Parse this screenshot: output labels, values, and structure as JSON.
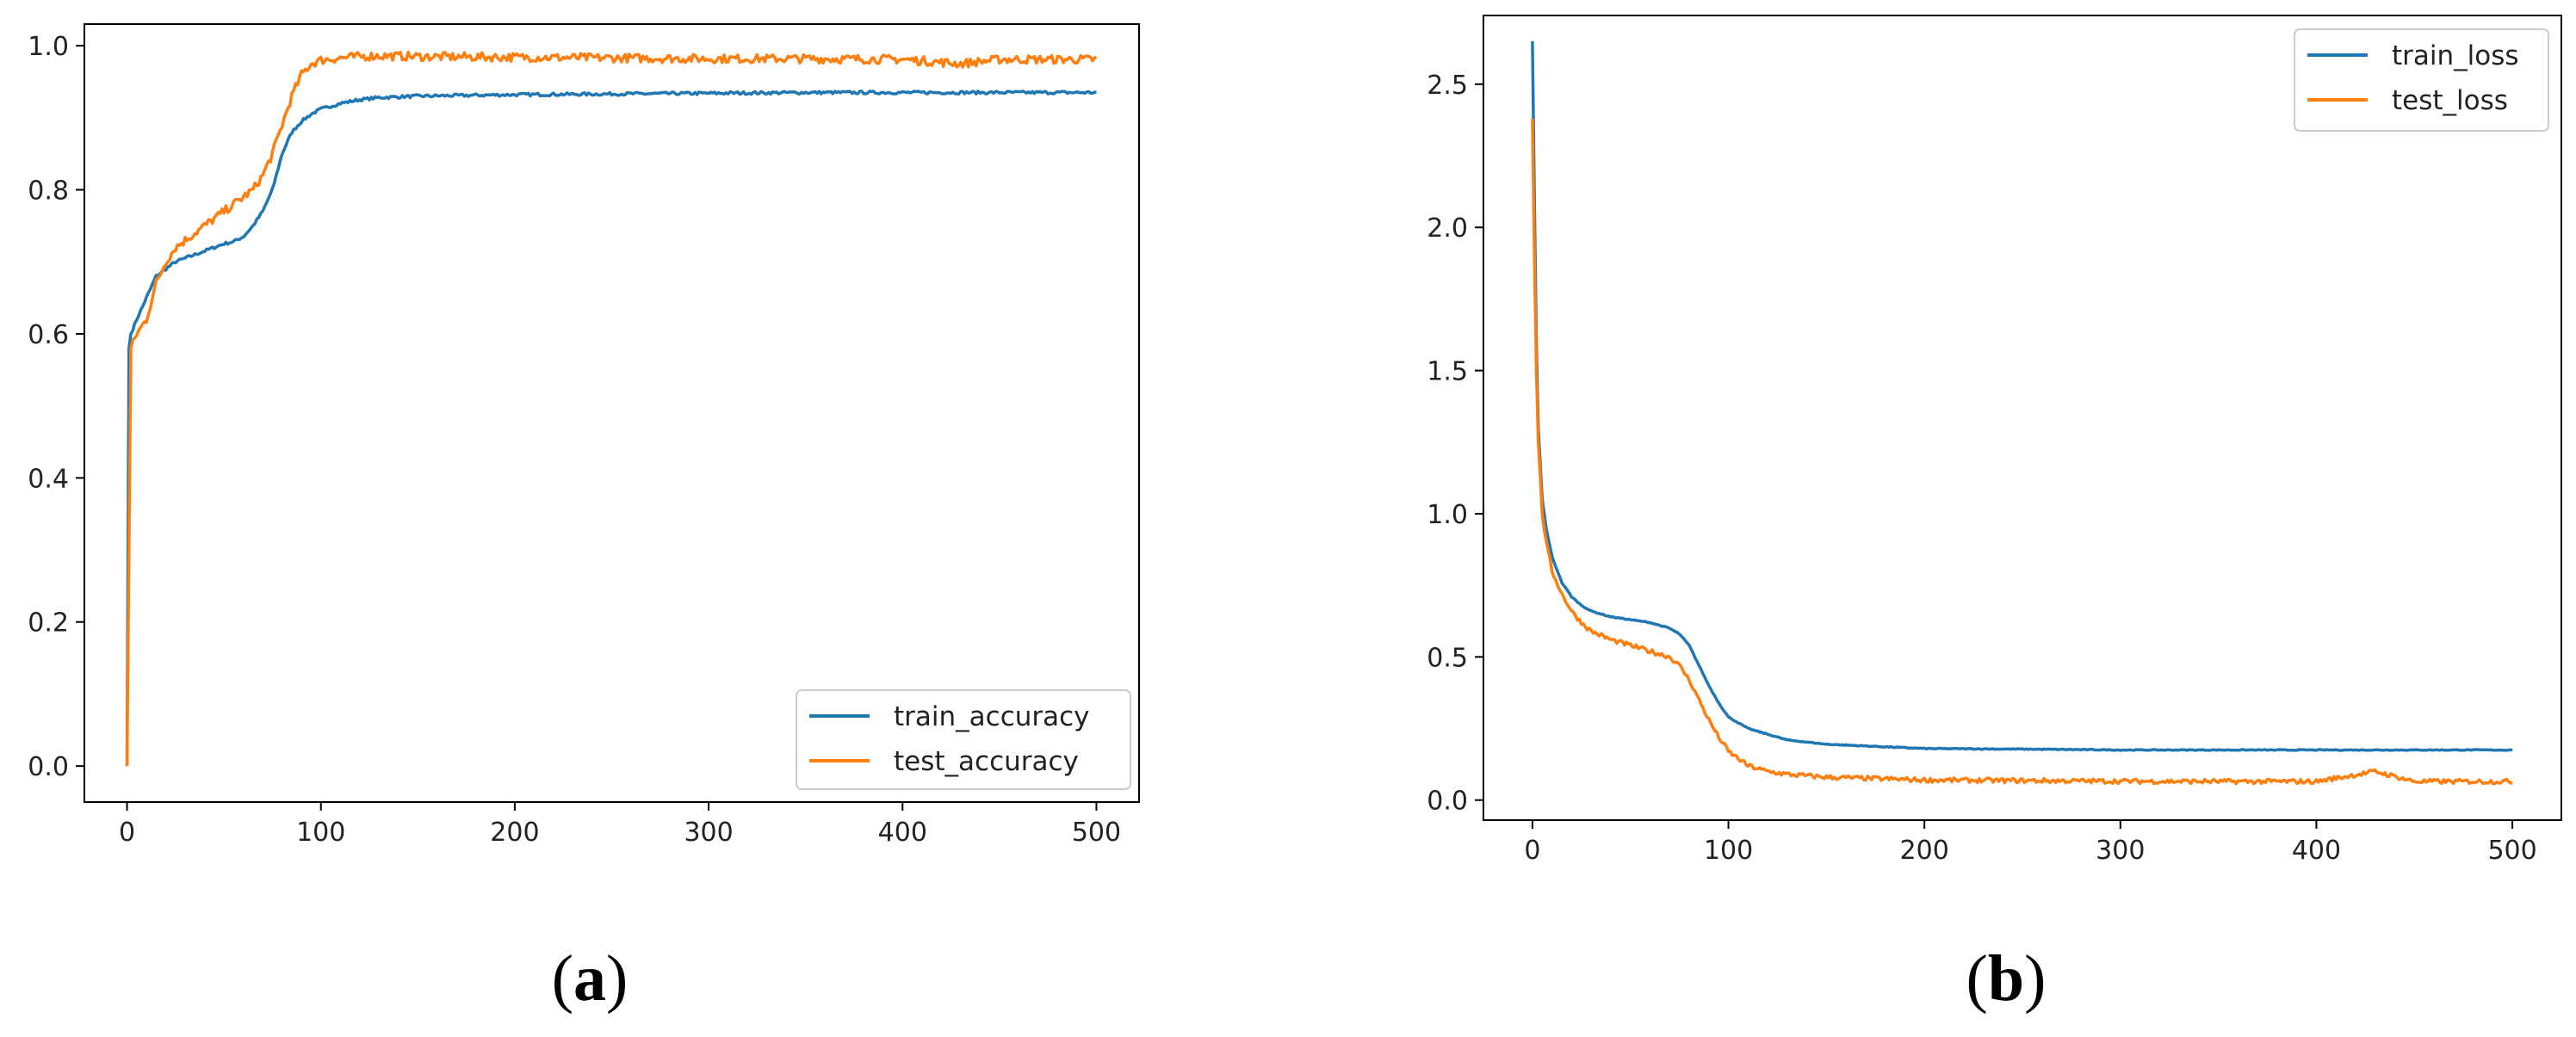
{
  "colors": {
    "train": "#1f77b4",
    "test": "#ff7f0e"
  },
  "chart_data": [
    {
      "type": "line",
      "panel_label": "a",
      "xlim": [
        -22,
        522
      ],
      "ylim": [
        -0.05,
        1.03
      ],
      "xticks": [
        0,
        100,
        200,
        300,
        400,
        500
      ],
      "yticks": [
        0.0,
        0.2,
        0.4,
        0.6,
        0.8,
        1.0
      ],
      "ytick_labels": [
        "0.0",
        "0.2",
        "0.4",
        "0.6",
        "0.8",
        "1.0"
      ],
      "grid": false,
      "legend_position": "lower-right",
      "series": [
        {
          "name": "train_accuracy",
          "color_key": "train",
          "noise": 0.002,
          "x": [
            0,
            1,
            2,
            5,
            10,
            15,
            20,
            25,
            30,
            35,
            40,
            45,
            50,
            55,
            60,
            65,
            70,
            75,
            80,
            85,
            90,
            95,
            100,
            110,
            120,
            130,
            150,
            200,
            250,
            300,
            350,
            400,
            450,
            500
          ],
          "y": [
            0.0,
            0.58,
            0.6,
            0.62,
            0.65,
            0.68,
            0.69,
            0.7,
            0.705,
            0.71,
            0.715,
            0.72,
            0.725,
            0.728,
            0.735,
            0.75,
            0.77,
            0.8,
            0.85,
            0.88,
            0.895,
            0.905,
            0.912,
            0.92,
            0.925,
            0.928,
            0.93,
            0.932,
            0.933,
            0.934,
            0.935,
            0.935,
            0.935,
            0.935
          ]
        },
        {
          "name": "test_accuracy",
          "color_key": "test",
          "noise": 0.006,
          "x": [
            0,
            1,
            2,
            5,
            10,
            15,
            20,
            25,
            30,
            35,
            40,
            45,
            50,
            55,
            60,
            65,
            70,
            75,
            80,
            85,
            90,
            95,
            100,
            110,
            120,
            130,
            150,
            200,
            250,
            300,
            350,
            400,
            430,
            450,
            500
          ],
          "y": [
            0.0,
            0.3,
            0.58,
            0.6,
            0.62,
            0.67,
            0.7,
            0.72,
            0.73,
            0.74,
            0.75,
            0.76,
            0.77,
            0.78,
            0.79,
            0.8,
            0.82,
            0.85,
            0.89,
            0.93,
            0.96,
            0.975,
            0.98,
            0.983,
            0.985,
            0.986,
            0.985,
            0.984,
            0.983,
            0.982,
            0.982,
            0.981,
            0.975,
            0.981,
            0.981
          ]
        }
      ]
    },
    {
      "type": "line",
      "panel_label": "b",
      "xlim": [
        -25,
        525
      ],
      "ylim": [
        -0.07,
        2.74
      ],
      "xticks": [
        0,
        100,
        200,
        300,
        400,
        500
      ],
      "yticks": [
        0.0,
        0.5,
        1.0,
        1.5,
        2.0,
        2.5
      ],
      "ytick_labels": [
        "0.0",
        "0.5",
        "1.0",
        "1.5",
        "2.0",
        "2.5"
      ],
      "grid": false,
      "legend_position": "upper-right",
      "series": [
        {
          "name": "train_loss",
          "color_key": "train",
          "noise": 0.0015,
          "x": [
            0,
            1,
            2,
            3,
            5,
            7,
            10,
            15,
            20,
            25,
            30,
            40,
            50,
            60,
            65,
            70,
            75,
            80,
            85,
            90,
            95,
            100,
            110,
            120,
            130,
            150,
            200,
            250,
            300,
            350,
            400,
            450,
            500
          ],
          "y": [
            2.65,
            2.1,
            1.6,
            1.3,
            1.05,
            0.95,
            0.85,
            0.76,
            0.71,
            0.68,
            0.66,
            0.64,
            0.63,
            0.62,
            0.61,
            0.6,
            0.58,
            0.54,
            0.47,
            0.4,
            0.34,
            0.29,
            0.25,
            0.23,
            0.21,
            0.195,
            0.18,
            0.178,
            0.175,
            0.175,
            0.175,
            0.175,
            0.175
          ]
        },
        {
          "name": "test_loss",
          "color_key": "test",
          "noise": 0.008,
          "x": [
            0,
            1,
            2,
            3,
            5,
            7,
            10,
            15,
            20,
            25,
            30,
            40,
            50,
            60,
            65,
            70,
            75,
            80,
            85,
            90,
            95,
            100,
            110,
            120,
            130,
            150,
            200,
            250,
            300,
            350,
            400,
            430,
            450,
            500
          ],
          "y": [
            2.38,
            1.9,
            1.5,
            1.25,
            1.0,
            0.9,
            0.8,
            0.72,
            0.66,
            0.62,
            0.59,
            0.56,
            0.54,
            0.52,
            0.51,
            0.5,
            0.47,
            0.42,
            0.35,
            0.28,
            0.22,
            0.17,
            0.12,
            0.1,
            0.09,
            0.08,
            0.07,
            0.068,
            0.066,
            0.065,
            0.065,
            0.1,
            0.065,
            0.065
          ]
        }
      ]
    }
  ]
}
